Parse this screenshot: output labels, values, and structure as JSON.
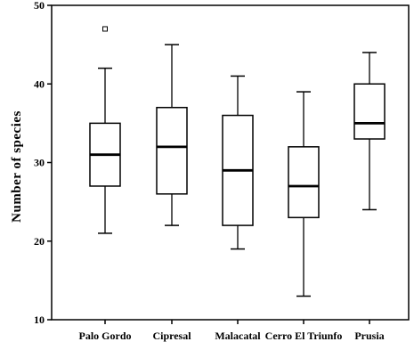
{
  "chart_data": {
    "type": "boxplot",
    "title": "",
    "xlabel": "",
    "ylabel": "Number of species",
    "ylim": [
      10,
      50
    ],
    "yticks": [
      10,
      20,
      30,
      40,
      50
    ],
    "grid": false,
    "legend": "none",
    "categories": [
      "Palo Gordo",
      "Cipresal",
      "Malacatal",
      "Cerro El Triunfo",
      "Prusia"
    ],
    "boxes": [
      {
        "category": "Palo Gordo",
        "whisker_low": 21,
        "q1": 27,
        "median": 31,
        "q3": 35,
        "whisker_high": 42,
        "outliers": [
          47
        ]
      },
      {
        "category": "Cipresal",
        "whisker_low": 22,
        "q1": 26,
        "median": 32,
        "q3": 37,
        "whisker_high": 45,
        "outliers": []
      },
      {
        "category": "Malacatal",
        "whisker_low": 19,
        "q1": 22,
        "median": 29,
        "q3": 36,
        "whisker_high": 41,
        "outliers": []
      },
      {
        "category": "Cerro El Triunfo",
        "whisker_low": 13,
        "q1": 23,
        "median": 27,
        "q3": 32,
        "whisker_high": 39,
        "outliers": []
      },
      {
        "category": "Prusia",
        "whisker_low": 24,
        "q1": 33,
        "median": 35,
        "q3": 40,
        "whisker_high": 44,
        "outliers": []
      }
    ],
    "colors": {
      "box_fill": "#ffffff",
      "line": "#000000"
    }
  }
}
